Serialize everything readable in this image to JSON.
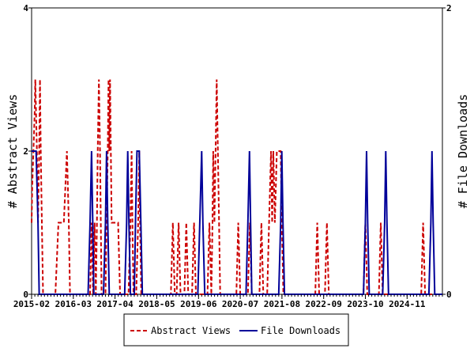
{
  "chart_data": {
    "type": "line",
    "title": "",
    "x_tick_labels": [
      "2015-02",
      "2016-03",
      "2017-04",
      "2018-05",
      "2019-06",
      "2020-07",
      "2021-08",
      "2022-09",
      "2023-10",
      "2024-11"
    ],
    "x_tick_positions": [
      2015.083,
      2016.167,
      2017.25,
      2018.333,
      2019.417,
      2020.5,
      2021.583,
      2022.667,
      2023.75,
      2024.833
    ],
    "xlim": [
      2015.083,
      2025.75
    ],
    "ylabel_left": "# Abstract Views",
    "ylabel_right": "# File Downloads",
    "ylim_left": [
      0,
      4
    ],
    "ylim_right": [
      0,
      2
    ],
    "left_ticks": [
      "0",
      "2",
      "4"
    ],
    "right_ticks": [
      "0",
      "2"
    ],
    "legend_position": "bottom-center",
    "grid": false,
    "series": [
      {
        "name": "Abstract Views",
        "axis": "left",
        "color": "#cc0000",
        "style": "dashed",
        "points": [
          [
            2015.083,
            1
          ],
          [
            2015.1,
            1.5
          ],
          [
            2015.13,
            2
          ],
          [
            2015.16,
            2.5
          ],
          [
            2015.18,
            3
          ],
          [
            2015.2,
            2.5
          ],
          [
            2015.22,
            2
          ],
          [
            2015.25,
            1
          ],
          [
            2015.28,
            2
          ],
          [
            2015.3,
            3
          ],
          [
            2015.32,
            2
          ],
          [
            2015.35,
            1
          ],
          [
            2015.38,
            0
          ],
          [
            2015.7,
            0
          ],
          [
            2015.78,
            1
          ],
          [
            2015.85,
            1
          ],
          [
            2015.92,
            1
          ],
          [
            2016.0,
            2
          ],
          [
            2016.05,
            1
          ],
          [
            2016.08,
            0
          ],
          [
            2016.6,
            0
          ],
          [
            2016.64,
            1
          ],
          [
            2016.68,
            0
          ],
          [
            2016.72,
            1
          ],
          [
            2016.75,
            0
          ],
          [
            2016.78,
            1
          ],
          [
            2016.8,
            2
          ],
          [
            2016.83,
            3
          ],
          [
            2016.86,
            2
          ],
          [
            2016.88,
            1
          ],
          [
            2016.9,
            0
          ],
          [
            2017.0,
            0
          ],
          [
            2017.03,
            1
          ],
          [
            2017.06,
            2
          ],
          [
            2017.08,
            3
          ],
          [
            2017.1,
            2
          ],
          [
            2017.12,
            3
          ],
          [
            2017.14,
            2
          ],
          [
            2017.16,
            1
          ],
          [
            2017.25,
            1
          ],
          [
            2017.33,
            1
          ],
          [
            2017.38,
            0
          ],
          [
            2017.6,
            0
          ],
          [
            2017.65,
            1
          ],
          [
            2017.68,
            2
          ],
          [
            2017.7,
            1
          ],
          [
            2017.73,
            0
          ],
          [
            2017.8,
            0
          ],
          [
            2017.85,
            1
          ],
          [
            2017.88,
            2
          ],
          [
            2017.9,
            1
          ],
          [
            2017.93,
            0
          ],
          [
            2018.7,
            0
          ],
          [
            2018.75,
            1
          ],
          [
            2018.8,
            0
          ],
          [
            2018.85,
            0
          ],
          [
            2018.9,
            1
          ],
          [
            2018.95,
            0
          ],
          [
            2019.05,
            0
          ],
          [
            2019.1,
            1
          ],
          [
            2019.15,
            0
          ],
          [
            2019.25,
            0
          ],
          [
            2019.3,
            1
          ],
          [
            2019.35,
            0
          ],
          [
            2019.65,
            0
          ],
          [
            2019.7,
            1
          ],
          [
            2019.75,
            0
          ],
          [
            2019.78,
            1
          ],
          [
            2019.8,
            2
          ],
          [
            2019.83,
            1
          ],
          [
            2019.86,
            2
          ],
          [
            2019.89,
            3
          ],
          [
            2019.92,
            2
          ],
          [
            2019.95,
            1
          ],
          [
            2019.98,
            0
          ],
          [
            2020.4,
            0
          ],
          [
            2020.45,
            1
          ],
          [
            2020.5,
            0
          ],
          [
            2020.7,
            0
          ],
          [
            2020.75,
            1
          ],
          [
            2020.8,
            0
          ],
          [
            2021.0,
            0
          ],
          [
            2021.05,
            1
          ],
          [
            2021.1,
            0
          ],
          [
            2021.2,
            0
          ],
          [
            2021.25,
            1
          ],
          [
            2021.3,
            2
          ],
          [
            2021.33,
            1
          ],
          [
            2021.36,
            2
          ],
          [
            2021.4,
            1
          ],
          [
            2021.45,
            2
          ],
          [
            2021.5,
            2
          ],
          [
            2021.55,
            2
          ],
          [
            2021.58,
            1
          ],
          [
            2021.62,
            0
          ],
          [
            2022.45,
            0
          ],
          [
            2022.5,
            1
          ],
          [
            2022.55,
            0
          ],
          [
            2022.7,
            0
          ],
          [
            2022.75,
            1
          ],
          [
            2022.8,
            0
          ],
          [
            2023.7,
            0
          ],
          [
            2023.75,
            1
          ],
          [
            2023.8,
            0
          ],
          [
            2024.1,
            0
          ],
          [
            2024.15,
            1
          ],
          [
            2024.2,
            0
          ],
          [
            2025.2,
            0
          ],
          [
            2025.25,
            1
          ],
          [
            2025.3,
            0
          ],
          [
            2025.75,
            0
          ]
        ]
      },
      {
        "name": "File Downloads",
        "axis": "right",
        "color": "#000099",
        "style": "solid",
        "points": [
          [
            2015.083,
            1
          ],
          [
            2015.1,
            1
          ],
          [
            2015.12,
            1
          ],
          [
            2015.2,
            1
          ],
          [
            2015.25,
            0.5
          ],
          [
            2015.28,
            0
          ],
          [
            2016.55,
            0
          ],
          [
            2016.6,
            0.5
          ],
          [
            2016.64,
            1
          ],
          [
            2016.67,
            0.5
          ],
          [
            2016.7,
            0
          ],
          [
            2016.95,
            0
          ],
          [
            2017.0,
            0.5
          ],
          [
            2017.03,
            1
          ],
          [
            2017.06,
            0.5
          ],
          [
            2017.1,
            0
          ],
          [
            2017.5,
            0
          ],
          [
            2017.55,
            0.5
          ],
          [
            2017.58,
            1
          ],
          [
            2017.61,
            0.5
          ],
          [
            2017.65,
            0
          ],
          [
            2017.75,
            0
          ],
          [
            2017.78,
            0.5
          ],
          [
            2017.82,
            1
          ],
          [
            2017.88,
            1
          ],
          [
            2017.92,
            0.5
          ],
          [
            2017.96,
            0
          ],
          [
            2019.4,
            0
          ],
          [
            2019.45,
            0.5
          ],
          [
            2019.5,
            1
          ],
          [
            2019.53,
            0.5
          ],
          [
            2019.58,
            0
          ],
          [
            2020.65,
            0
          ],
          [
            2020.7,
            0.5
          ],
          [
            2020.74,
            1
          ],
          [
            2020.77,
            0.5
          ],
          [
            2020.8,
            0
          ],
          [
            2021.5,
            0
          ],
          [
            2021.55,
            0.5
          ],
          [
            2021.58,
            1
          ],
          [
            2021.61,
            0.5
          ],
          [
            2021.65,
            0
          ],
          [
            2023.7,
            0
          ],
          [
            2023.75,
            0.5
          ],
          [
            2023.78,
            1
          ],
          [
            2023.81,
            0.5
          ],
          [
            2023.85,
            0
          ],
          [
            2024.2,
            0
          ],
          [
            2024.25,
            0.5
          ],
          [
            2024.28,
            1
          ],
          [
            2024.31,
            0.5
          ],
          [
            2024.35,
            0
          ],
          [
            2025.4,
            0
          ],
          [
            2025.45,
            0.5
          ],
          [
            2025.48,
            1
          ],
          [
            2025.51,
            0.5
          ],
          [
            2025.55,
            0
          ],
          [
            2025.75,
            0
          ]
        ]
      }
    ]
  }
}
